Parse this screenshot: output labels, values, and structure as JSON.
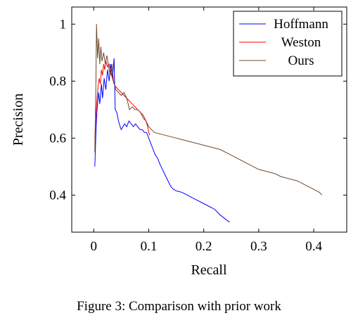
{
  "caption": "Figure 3: Comparison with prior work",
  "chart_data": {
    "type": "line",
    "title": "",
    "xlabel": "Recall",
    "ylabel": "Precision",
    "xlim": [
      -0.04,
      0.46
    ],
    "ylim": [
      0.27,
      1.06
    ],
    "xticks": [
      0,
      0.1,
      0.2,
      0.3,
      0.4
    ],
    "xtick_labels": [
      "0",
      "0.1",
      "0.2",
      "0.3",
      "0.4"
    ],
    "yticks": [
      0.4,
      0.6,
      0.8,
      1
    ],
    "ytick_labels": [
      "0.4",
      "0.6",
      "0.8",
      "1"
    ],
    "grid": false,
    "legend_position": "top-right",
    "series": [
      {
        "name": "Hoffmann",
        "color": "#0000ff",
        "points": [
          [
            0.002,
            0.5
          ],
          [
            0.004,
            0.62
          ],
          [
            0.006,
            0.7
          ],
          [
            0.009,
            0.76
          ],
          [
            0.011,
            0.72
          ],
          [
            0.014,
            0.79
          ],
          [
            0.016,
            0.74
          ],
          [
            0.019,
            0.81
          ],
          [
            0.022,
            0.77
          ],
          [
            0.025,
            0.84
          ],
          [
            0.028,
            0.8
          ],
          [
            0.031,
            0.86
          ],
          [
            0.034,
            0.81
          ],
          [
            0.037,
            0.88
          ],
          [
            0.039,
            0.7
          ],
          [
            0.042,
            0.69
          ],
          [
            0.045,
            0.66
          ],
          [
            0.048,
            0.64
          ],
          [
            0.05,
            0.63
          ],
          [
            0.053,
            0.64
          ],
          [
            0.056,
            0.65
          ],
          [
            0.06,
            0.64
          ],
          [
            0.064,
            0.66
          ],
          [
            0.068,
            0.65
          ],
          [
            0.072,
            0.64
          ],
          [
            0.076,
            0.65
          ],
          [
            0.08,
            0.64
          ],
          [
            0.084,
            0.63
          ],
          [
            0.088,
            0.63
          ],
          [
            0.092,
            0.62
          ],
          [
            0.096,
            0.62
          ],
          [
            0.1,
            0.6
          ],
          [
            0.104,
            0.58
          ],
          [
            0.108,
            0.56
          ],
          [
            0.112,
            0.54
          ],
          [
            0.116,
            0.53
          ],
          [
            0.12,
            0.51
          ],
          [
            0.125,
            0.49
          ],
          [
            0.13,
            0.47
          ],
          [
            0.135,
            0.45
          ],
          [
            0.14,
            0.43
          ],
          [
            0.145,
            0.42
          ],
          [
            0.15,
            0.415
          ],
          [
            0.16,
            0.41
          ],
          [
            0.17,
            0.4
          ],
          [
            0.18,
            0.39
          ],
          [
            0.19,
            0.38
          ],
          [
            0.2,
            0.37
          ],
          [
            0.21,
            0.36
          ],
          [
            0.22,
            0.35
          ],
          [
            0.23,
            0.33
          ],
          [
            0.24,
            0.315
          ],
          [
            0.247,
            0.305
          ]
        ]
      },
      {
        "name": "Weston",
        "color": "#ff0000",
        "points": [
          [
            0.002,
            0.6
          ],
          [
            0.004,
            0.68
          ],
          [
            0.006,
            0.74
          ],
          [
            0.008,
            0.78
          ],
          [
            0.01,
            0.81
          ],
          [
            0.012,
            0.79
          ],
          [
            0.014,
            0.84
          ],
          [
            0.016,
            0.82
          ],
          [
            0.018,
            0.86
          ],
          [
            0.02,
            0.84
          ],
          [
            0.022,
            0.87
          ],
          [
            0.025,
            0.85
          ],
          [
            0.028,
            0.86
          ],
          [
            0.031,
            0.83
          ],
          [
            0.034,
            0.81
          ],
          [
            0.037,
            0.79
          ],
          [
            0.04,
            0.78
          ],
          [
            0.045,
            0.77
          ],
          [
            0.05,
            0.76
          ],
          [
            0.055,
            0.75
          ],
          [
            0.06,
            0.74
          ],
          [
            0.065,
            0.73
          ],
          [
            0.07,
            0.72
          ],
          [
            0.075,
            0.71
          ],
          [
            0.08,
            0.7
          ],
          [
            0.085,
            0.69
          ],
          [
            0.09,
            0.68
          ],
          [
            0.095,
            0.66
          ],
          [
            0.098,
            0.64
          ],
          [
            0.1,
            0.62
          ],
          [
            0.102,
            0.61
          ]
        ]
      },
      {
        "name": "Ours",
        "color": "#6b4a2e",
        "points": [
          [
            0.002,
            0.55
          ],
          [
            0.004,
            0.8
          ],
          [
            0.005,
            1.0
          ],
          [
            0.007,
            0.88
          ],
          [
            0.009,
            0.95
          ],
          [
            0.011,
            0.86
          ],
          [
            0.013,
            0.92
          ],
          [
            0.015,
            0.87
          ],
          [
            0.018,
            0.9
          ],
          [
            0.021,
            0.86
          ],
          [
            0.024,
            0.89
          ],
          [
            0.027,
            0.85
          ],
          [
            0.03,
            0.82
          ],
          [
            0.033,
            0.86
          ],
          [
            0.036,
            0.8
          ],
          [
            0.04,
            0.77
          ],
          [
            0.045,
            0.76
          ],
          [
            0.05,
            0.75
          ],
          [
            0.055,
            0.76
          ],
          [
            0.06,
            0.74
          ],
          [
            0.065,
            0.7
          ],
          [
            0.07,
            0.71
          ],
          [
            0.075,
            0.7
          ],
          [
            0.08,
            0.7
          ],
          [
            0.085,
            0.69
          ],
          [
            0.09,
            0.67
          ],
          [
            0.095,
            0.66
          ],
          [
            0.1,
            0.64
          ],
          [
            0.105,
            0.63
          ],
          [
            0.11,
            0.62
          ],
          [
            0.12,
            0.615
          ],
          [
            0.13,
            0.61
          ],
          [
            0.14,
            0.605
          ],
          [
            0.15,
            0.6
          ],
          [
            0.16,
            0.595
          ],
          [
            0.17,
            0.59
          ],
          [
            0.18,
            0.585
          ],
          [
            0.19,
            0.58
          ],
          [
            0.2,
            0.575
          ],
          [
            0.21,
            0.57
          ],
          [
            0.22,
            0.565
          ],
          [
            0.23,
            0.56
          ],
          [
            0.24,
            0.55
          ],
          [
            0.25,
            0.54
          ],
          [
            0.26,
            0.53
          ],
          [
            0.27,
            0.52
          ],
          [
            0.28,
            0.51
          ],
          [
            0.29,
            0.5
          ],
          [
            0.3,
            0.49
          ],
          [
            0.31,
            0.485
          ],
          [
            0.32,
            0.48
          ],
          [
            0.33,
            0.475
          ],
          [
            0.34,
            0.465
          ],
          [
            0.35,
            0.46
          ],
          [
            0.36,
            0.455
          ],
          [
            0.37,
            0.45
          ],
          [
            0.38,
            0.44
          ],
          [
            0.39,
            0.43
          ],
          [
            0.4,
            0.42
          ],
          [
            0.41,
            0.41
          ],
          [
            0.415,
            0.4
          ]
        ]
      }
    ]
  }
}
